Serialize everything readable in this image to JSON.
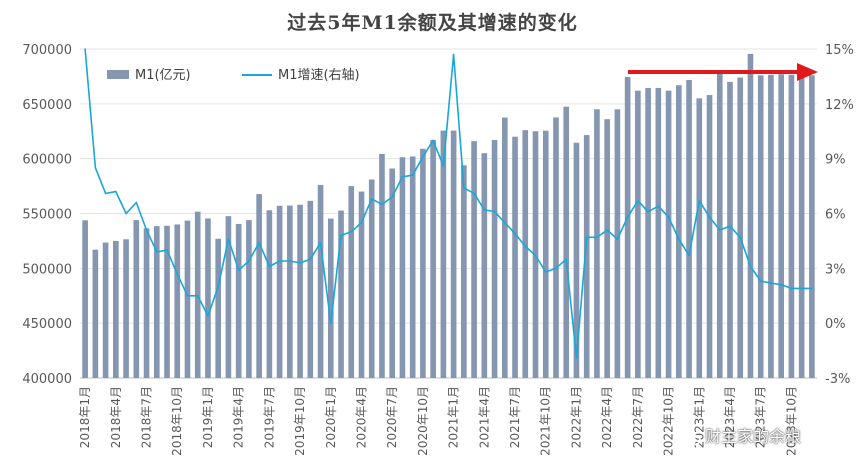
{
  "chart_data": {
    "type": "bar+line",
    "title": "过去5年M1余额及其增速的变化",
    "legend": [
      "M1(亿元)",
      "M1增速(右轴)"
    ],
    "legend_position": "top-left",
    "series": [
      {
        "name": "M1(亿元)",
        "type": "bar",
        "axis": "left",
        "color": "#8496b0",
        "values": [
          543800,
          517000,
          523500,
          525000,
          526500,
          544000,
          536500,
          538500,
          538800,
          540000,
          543500,
          551700,
          545500,
          527000,
          547600,
          540500,
          544000,
          567700,
          553000,
          557000,
          557200,
          558000,
          561500,
          576000,
          545400,
          552700,
          575000,
          570000,
          581000,
          604300,
          591000,
          601300,
          602000,
          609000,
          617000,
          625600,
          625600,
          594000,
          616000,
          605000,
          617000,
          637500,
          620000,
          626000,
          625000,
          625500,
          637600,
          647400,
          614500,
          621500,
          645000,
          636000,
          645000,
          674400,
          662000,
          664500,
          664500,
          662000,
          667000,
          671700,
          655000,
          658000,
          678500,
          670000,
          674000,
          695500,
          676000,
          676500,
          677000,
          676500,
          676000,
          676000
        ]
      },
      {
        "name": "M1增速(右轴)",
        "type": "line",
        "axis": "right",
        "color": "#1aa7d8",
        "values": [
          15.0,
          8.5,
          7.1,
          7.2,
          6.0,
          6.6,
          5.1,
          3.9,
          4.0,
          2.7,
          1.5,
          1.5,
          0.4,
          2.0,
          4.6,
          2.9,
          3.4,
          4.4,
          3.1,
          3.4,
          3.4,
          3.3,
          3.5,
          4.4,
          0.0,
          4.8,
          5.0,
          5.5,
          6.8,
          6.5,
          6.9,
          8.0,
          8.1,
          9.1,
          10.0,
          8.6,
          14.7,
          7.4,
          7.1,
          6.2,
          6.1,
          5.5,
          4.9,
          4.2,
          3.7,
          2.8,
          3.0,
          3.5,
          -1.9,
          4.7,
          4.7,
          5.1,
          4.6,
          5.8,
          6.7,
          6.1,
          6.4,
          5.8,
          4.6,
          3.7,
          6.7,
          5.8,
          5.1,
          5.3,
          4.7,
          3.1,
          2.3,
          2.2,
          2.1,
          1.9,
          1.9,
          1.9
        ]
      }
    ],
    "x_labels": [
      "2018年1月",
      "2018年4月",
      "2018年7月",
      "2018年10月",
      "2019年1月",
      "2019年4月",
      "2019年7月",
      "2019年10月",
      "2020年1月",
      "2020年4月",
      "2020年7月",
      "2020年10月",
      "2021年1月",
      "2021年4月",
      "2021年7月",
      "2021年10月",
      "2022年1月",
      "2022年4月",
      "2022年7月",
      "2022年10月",
      "2023年1月",
      "2023年4月",
      "2023年7月",
      "2023年10月"
    ],
    "y_left": {
      "min": 400000,
      "max": 700000,
      "ticks": [
        "700000",
        "650000",
        "600000",
        "550000",
        "500000",
        "450000",
        "400000"
      ]
    },
    "y_right": {
      "min": -3,
      "max": 15,
      "ticks": [
        "15%",
        "12%",
        "9%",
        "6%",
        "3%",
        "0%",
        "-3%"
      ]
    },
    "annotations": [
      {
        "type": "arrow",
        "color": "#e0191a",
        "direction": "right"
      }
    ]
  },
  "watermark": {
    "text": "财主家的余粮",
    "icon": "wechat-icon"
  }
}
